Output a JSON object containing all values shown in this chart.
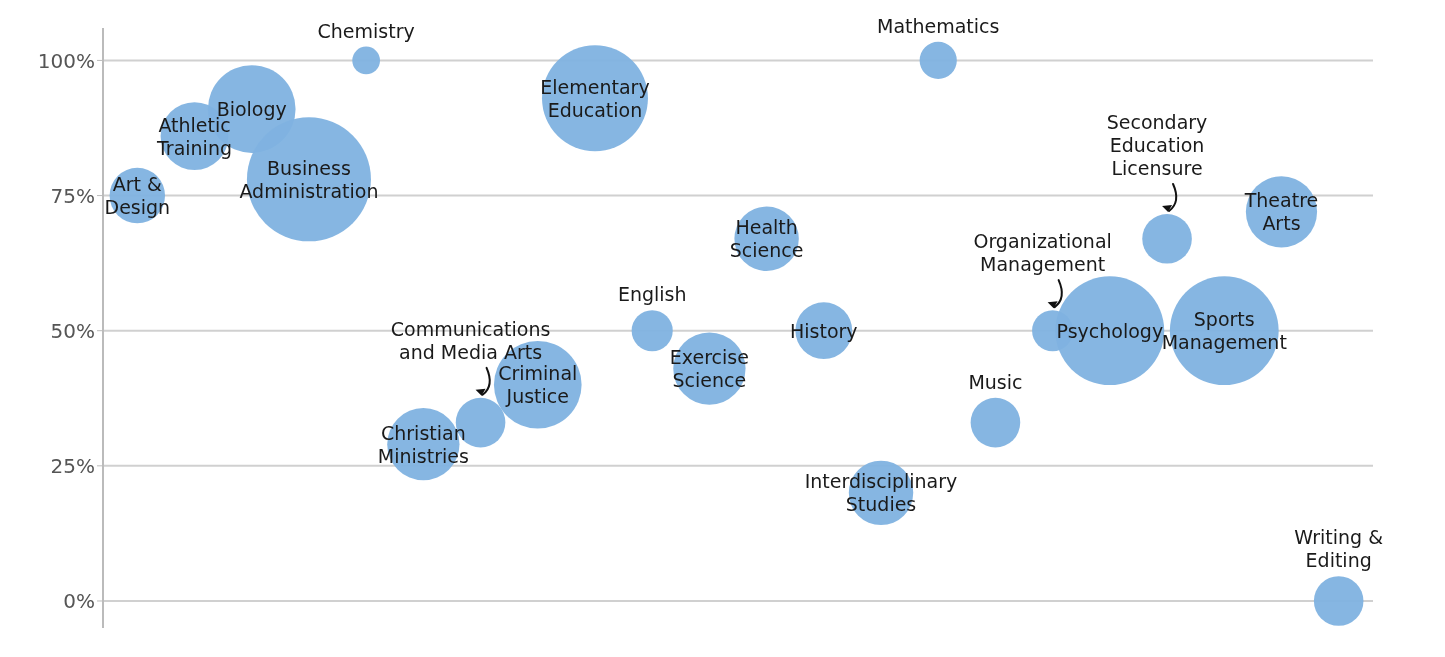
{
  "chart_data": {
    "type": "bubble",
    "categories": [
      null,
      null,
      null,
      null,
      null,
      null,
      null,
      null,
      null,
      null,
      null,
      null,
      null,
      null,
      null,
      null,
      null,
      null,
      null,
      null,
      null,
      null
    ],
    "values": [
      75,
      86,
      91,
      78,
      100,
      29,
      33,
      40,
      93,
      50,
      43,
      67,
      50,
      20,
      100,
      33,
      50,
      50,
      67,
      50,
      72,
      0
    ],
    "sizes": [
      0.2,
      0.3,
      0.5,
      1,
      0.05,
      0.34,
      0.16,
      0.5,
      0.73,
      0.11,
      0.34,
      0.27,
      0.21,
      0.27,
      0.09,
      0.16,
      0.11,
      0.77,
      0.16,
      0.77,
      0.33,
      0.16
    ],
    "value_labels": [
      "Art & Design",
      "Athletic Training",
      "Biology",
      "Business Administration",
      "Chemistry",
      "Christian Ministries",
      "Communications and Media Arts",
      "Criminal Justice",
      "Elementary Education",
      "English",
      "Exercise Science",
      "Health Science",
      "History",
      "Interdisciplinary Studies",
      "Mathematics",
      "Music",
      "Organizational Management",
      "Psychology",
      "Secondary Education Licensure",
      "Sports Management",
      "Theatre Arts",
      "Writing & Editing"
    ],
    "color": "#7fb2e0",
    "ylim": [
      -5,
      106
    ],
    "yticks": [
      {
        "value": 0,
        "label": "0%"
      },
      {
        "value": 25,
        "label": "25%"
      },
      {
        "value": 50,
        "label": "50%"
      },
      {
        "value": 75,
        "label": "75%"
      },
      {
        "value": 100,
        "label": "100%"
      }
    ],
    "grid": "y",
    "tick_labels": "y"
  }
}
